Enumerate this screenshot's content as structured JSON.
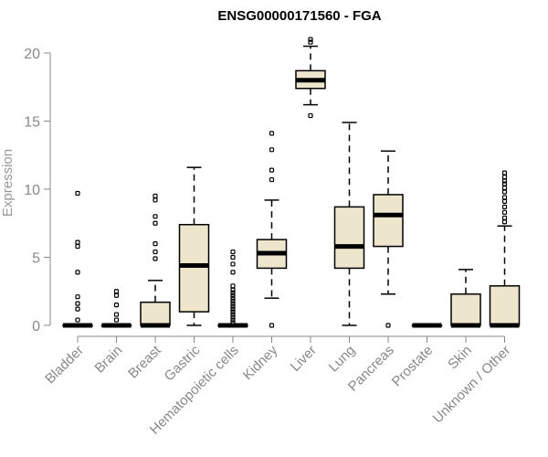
{
  "chart_data": {
    "type": "boxplot",
    "title": "ENSG00000171560 - FGA",
    "xlabel": "",
    "ylabel": "Expression",
    "ylim": [
      0,
      20
    ],
    "yticks": [
      0,
      5,
      10,
      15,
      20
    ],
    "categories": [
      "Bladder",
      "Brain",
      "Breast",
      "Gastric",
      "Hematopoietic cells",
      "Kidney",
      "Liver",
      "Lung",
      "Pancreas",
      "Prostate",
      "Skin",
      "Unknown / Other"
    ],
    "boxes": [
      {
        "name": "Bladder",
        "min": 0,
        "q1": 0,
        "median": 0,
        "q3": 0,
        "max": 0,
        "outliers": [
          0.4,
          1.2,
          1.6,
          2.1,
          3.9,
          5.8,
          6.1,
          9.7
        ]
      },
      {
        "name": "Brain",
        "min": 0,
        "q1": 0,
        "median": 0,
        "q3": 0,
        "max": 0,
        "outliers": [
          0.4,
          0.8,
          1.5,
          2.2,
          2.5
        ]
      },
      {
        "name": "Breast",
        "min": 0,
        "q1": 0,
        "median": 0,
        "q3": 1.7,
        "max": 3.3,
        "outliers": [
          4.9,
          5.4,
          6.0,
          7.5,
          8.0,
          9.2,
          9.5
        ]
      },
      {
        "name": "Gastric",
        "min": 0,
        "q1": 1.0,
        "median": 4.4,
        "q3": 7.4,
        "max": 11.6,
        "outliers": []
      },
      {
        "name": "Hematopoietic cells",
        "min": 0,
        "q1": 0,
        "median": 0,
        "q3": 0,
        "max": 0,
        "outliers": [
          0.2,
          0.4,
          0.6,
          0.8,
          1.0,
          1.2,
          1.4,
          1.6,
          1.8,
          2.0,
          2.2,
          2.4,
          2.6,
          2.9,
          3.9,
          4.5,
          5.0,
          5.4
        ]
      },
      {
        "name": "Kidney",
        "min": 2.0,
        "q1": 4.2,
        "median": 5.3,
        "q3": 6.3,
        "max": 9.2,
        "outliers": [
          0,
          10.7,
          11.4,
          12.9,
          14.1
        ]
      },
      {
        "name": "Liver",
        "min": 16.2,
        "q1": 17.4,
        "median": 18.0,
        "q3": 18.7,
        "max": 20.5,
        "outliers": [
          15.4,
          20.8,
          21.0
        ]
      },
      {
        "name": "Lung",
        "min": 0,
        "q1": 4.2,
        "median": 5.8,
        "q3": 8.7,
        "max": 14.9,
        "outliers": []
      },
      {
        "name": "Pancreas",
        "min": 2.3,
        "q1": 5.8,
        "median": 8.1,
        "q3": 9.6,
        "max": 12.8,
        "outliers": [
          0
        ]
      },
      {
        "name": "Prostate",
        "min": 0,
        "q1": 0,
        "median": 0,
        "q3": 0,
        "max": 0,
        "outliers": []
      },
      {
        "name": "Skin",
        "min": 0,
        "q1": 0,
        "median": 0,
        "q3": 2.3,
        "max": 4.1,
        "outliers": []
      },
      {
        "name": "Unknown / Other",
        "min": 0,
        "q1": 0,
        "median": 0,
        "q3": 2.9,
        "max": 7.3,
        "outliers": [
          7.6,
          7.9,
          8.3,
          8.7,
          9.1,
          9.4,
          9.8,
          10.1,
          10.4,
          10.6,
          10.9,
          11.2
        ]
      }
    ],
    "colors": {
      "box_fill": "#ede6cd",
      "stroke": "#000000",
      "axis": "#888888"
    }
  }
}
